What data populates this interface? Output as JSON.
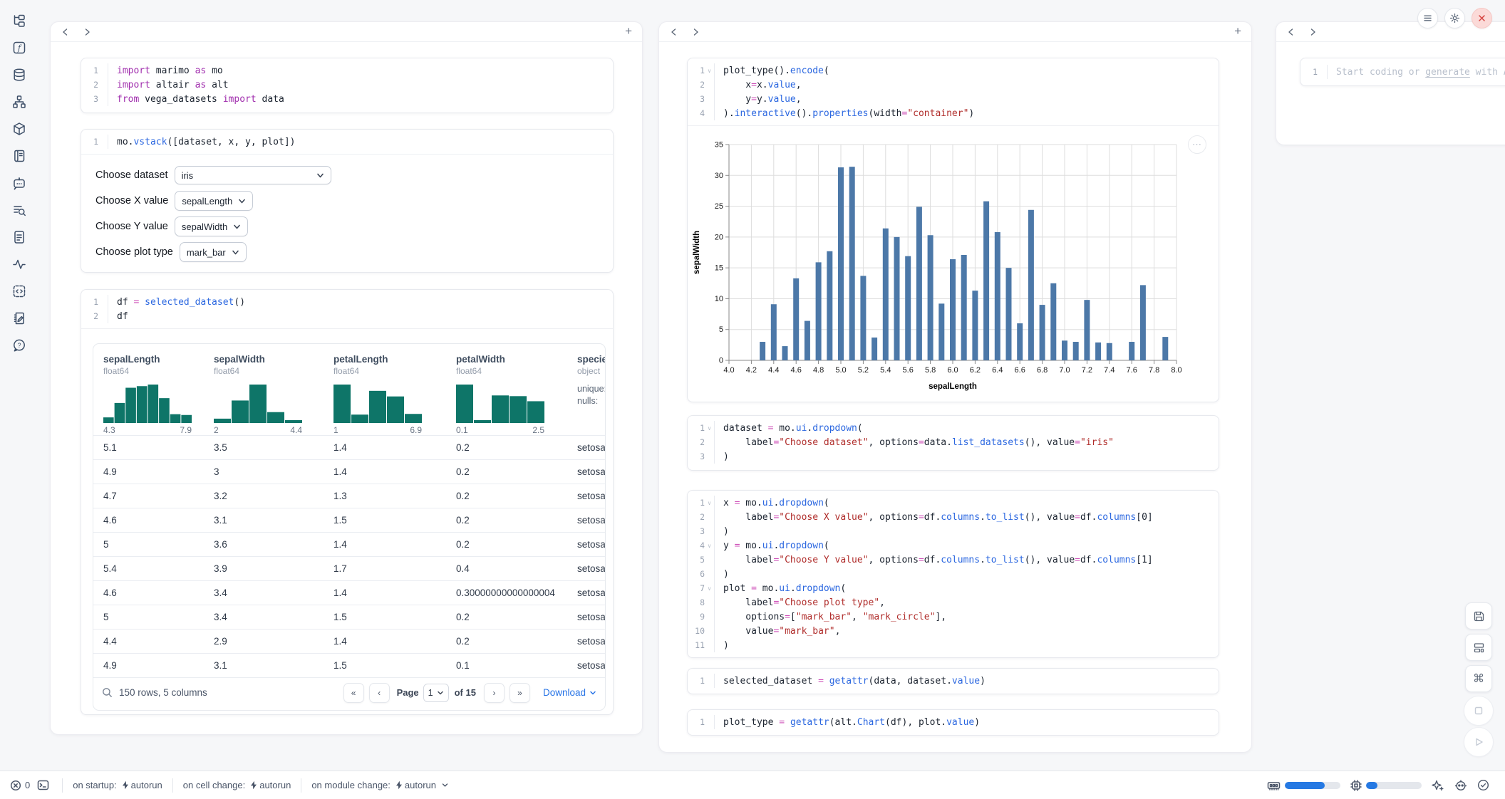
{
  "colors": {
    "accent_blue": "#2673e6",
    "bar_blue": "#4c78a8",
    "hist_teal": "#0e7568",
    "close_red": "#d64541",
    "progress_blue": "#2579e3"
  },
  "sidebar": {
    "icons": [
      "file-tree",
      "function-variables",
      "datasources",
      "dependency-graph",
      "packages",
      "logs",
      "ai-chat",
      "search-list",
      "documentation",
      "tracing",
      "snippets",
      "scratchpad",
      "help"
    ]
  },
  "cells": {
    "imports": {
      "lines": [
        [
          [
            "kw",
            "import"
          ],
          [
            "tx",
            " marimo "
          ],
          [
            "kw",
            "as"
          ],
          [
            "tx",
            " mo"
          ]
        ],
        [
          [
            "kw",
            "import"
          ],
          [
            "tx",
            " altair "
          ],
          [
            "kw",
            "as"
          ],
          [
            "tx",
            " alt"
          ]
        ],
        [
          [
            "kw",
            "from"
          ],
          [
            "tx",
            " vega_datasets "
          ],
          [
            "kw",
            "import"
          ],
          [
            "tx",
            " data"
          ]
        ]
      ],
      "folds": []
    },
    "vstack": {
      "lines": [
        [
          [
            "tx",
            "mo."
          ],
          [
            "fn",
            "vstack"
          ],
          [
            "tx",
            "([dataset, x, y, plot])"
          ]
        ]
      ],
      "folds": []
    },
    "df": {
      "lines": [
        [
          [
            "tx",
            "df "
          ],
          [
            "op",
            "="
          ],
          [
            "tx",
            " "
          ],
          [
            "fn",
            "selected_dataset"
          ],
          [
            "tx",
            "()"
          ]
        ],
        [
          [
            "tx",
            "df"
          ]
        ]
      ],
      "folds": []
    },
    "plot": {
      "lines": [
        [
          [
            "tx",
            "plot_type()."
          ],
          [
            "fn",
            "encode"
          ],
          [
            "tx",
            "("
          ]
        ],
        [
          [
            "tx",
            "    x"
          ],
          [
            "op",
            "="
          ],
          [
            "tx",
            "x."
          ],
          [
            "fn",
            "value"
          ],
          [
            "tx",
            ","
          ]
        ],
        [
          [
            "tx",
            "    y"
          ],
          [
            "op",
            "="
          ],
          [
            "tx",
            "y."
          ],
          [
            "fn",
            "value"
          ],
          [
            "tx",
            ","
          ]
        ],
        [
          [
            "tx",
            ")."
          ],
          [
            "fn",
            "interactive"
          ],
          [
            "tx",
            "()."
          ],
          [
            "fn",
            "properties"
          ],
          [
            "tx",
            "(width"
          ],
          [
            "op",
            "="
          ],
          [
            "st",
            "\"container\""
          ],
          [
            "tx",
            ")"
          ]
        ]
      ],
      "folds": [
        1
      ]
    },
    "dataset": {
      "lines": [
        [
          [
            "tx",
            "dataset "
          ],
          [
            "op",
            "="
          ],
          [
            "tx",
            " mo."
          ],
          [
            "fn",
            "ui"
          ],
          [
            "tx",
            "."
          ],
          [
            "fn",
            "dropdown"
          ],
          [
            "tx",
            "("
          ]
        ],
        [
          [
            "tx",
            "    label"
          ],
          [
            "op",
            "="
          ],
          [
            "st",
            "\"Choose dataset\""
          ],
          [
            "tx",
            ", options"
          ],
          [
            "op",
            "="
          ],
          [
            "tx",
            "data."
          ],
          [
            "fn",
            "list_datasets"
          ],
          [
            "tx",
            "(), value"
          ],
          [
            "op",
            "="
          ],
          [
            "st",
            "\"iris\""
          ]
        ],
        [
          [
            "tx",
            ")"
          ]
        ]
      ],
      "folds": [
        1
      ]
    },
    "xyplot": {
      "lines": [
        [
          [
            "tx",
            "x "
          ],
          [
            "op",
            "="
          ],
          [
            "tx",
            " mo."
          ],
          [
            "fn",
            "ui"
          ],
          [
            "tx",
            "."
          ],
          [
            "fn",
            "dropdown"
          ],
          [
            "tx",
            "("
          ]
        ],
        [
          [
            "tx",
            "    label"
          ],
          [
            "op",
            "="
          ],
          [
            "st",
            "\"Choose X value\""
          ],
          [
            "tx",
            ", options"
          ],
          [
            "op",
            "="
          ],
          [
            "tx",
            "df."
          ],
          [
            "fn",
            "columns"
          ],
          [
            "tx",
            "."
          ],
          [
            "fn",
            "to_list"
          ],
          [
            "tx",
            "(), value"
          ],
          [
            "op",
            "="
          ],
          [
            "tx",
            "df."
          ],
          [
            "fn",
            "columns"
          ],
          [
            "tx",
            "[0]"
          ]
        ],
        [
          [
            "tx",
            ")"
          ]
        ],
        [
          [
            "tx",
            "y "
          ],
          [
            "op",
            "="
          ],
          [
            "tx",
            " mo."
          ],
          [
            "fn",
            "ui"
          ],
          [
            "tx",
            "."
          ],
          [
            "fn",
            "dropdown"
          ],
          [
            "tx",
            "("
          ]
        ],
        [
          [
            "tx",
            "    label"
          ],
          [
            "op",
            "="
          ],
          [
            "st",
            "\"Choose Y value\""
          ],
          [
            "tx",
            ", options"
          ],
          [
            "op",
            "="
          ],
          [
            "tx",
            "df."
          ],
          [
            "fn",
            "columns"
          ],
          [
            "tx",
            "."
          ],
          [
            "fn",
            "to_list"
          ],
          [
            "tx",
            "(), value"
          ],
          [
            "op",
            "="
          ],
          [
            "tx",
            "df."
          ],
          [
            "fn",
            "columns"
          ],
          [
            "tx",
            "[1]"
          ]
        ],
        [
          [
            "tx",
            ")"
          ]
        ],
        [
          [
            "tx",
            "plot "
          ],
          [
            "op",
            "="
          ],
          [
            "tx",
            " mo."
          ],
          [
            "fn",
            "ui"
          ],
          [
            "tx",
            "."
          ],
          [
            "fn",
            "dropdown"
          ],
          [
            "tx",
            "("
          ]
        ],
        [
          [
            "tx",
            "    label"
          ],
          [
            "op",
            "="
          ],
          [
            "st",
            "\"Choose plot type\""
          ],
          [
            "tx",
            ","
          ]
        ],
        [
          [
            "tx",
            "    options"
          ],
          [
            "op",
            "="
          ],
          [
            "tx",
            "["
          ],
          [
            "st",
            "\"mark_bar\""
          ],
          [
            "tx",
            ", "
          ],
          [
            "st",
            "\"mark_circle\""
          ],
          [
            "tx",
            "],"
          ]
        ],
        [
          [
            "tx",
            "    value"
          ],
          [
            "op",
            "="
          ],
          [
            "st",
            "\"mark_bar\""
          ],
          [
            "tx",
            ","
          ]
        ],
        [
          [
            "tx",
            ")"
          ]
        ]
      ],
      "folds": [
        1,
        4,
        7
      ]
    },
    "selected": {
      "lines": [
        [
          [
            "tx",
            "selected_dataset "
          ],
          [
            "op",
            "="
          ],
          [
            "tx",
            " "
          ],
          [
            "fn",
            "getattr"
          ],
          [
            "tx",
            "(data, dataset."
          ],
          [
            "fn",
            "value"
          ],
          [
            "tx",
            ")"
          ]
        ]
      ],
      "folds": []
    },
    "plottype": {
      "lines": [
        [
          [
            "tx",
            "plot_type "
          ],
          [
            "op",
            "="
          ],
          [
            "tx",
            " "
          ],
          [
            "fn",
            "getattr"
          ],
          [
            "tx",
            "(alt."
          ],
          [
            "fn",
            "Chart"
          ],
          [
            "tx",
            "(df), plot."
          ],
          [
            "fn",
            "value"
          ],
          [
            "tx",
            ")"
          ]
        ]
      ],
      "folds": []
    },
    "scratch": {
      "line_no": "1"
    }
  },
  "controls": [
    {
      "label": "Choose dataset",
      "value": "iris",
      "wide": true
    },
    {
      "label": "Choose X value",
      "value": "sepalLength",
      "wide": false
    },
    {
      "label": "Choose Y value",
      "value": "sepalWidth",
      "wide": false
    },
    {
      "label": "Choose plot type",
      "value": "mark_bar",
      "wide": false
    }
  ],
  "table": {
    "columns": [
      {
        "name": "sepalLength",
        "dtype": "float64",
        "min": "4.3",
        "max": "7.9",
        "hist": [
          7,
          25,
          44,
          46,
          48,
          31,
          11,
          10
        ]
      },
      {
        "name": "sepalWidth",
        "dtype": "float64",
        "min": "2",
        "max": "4.4",
        "hist": [
          6,
          31,
          53,
          15,
          4
        ]
      },
      {
        "name": "petalLength",
        "dtype": "float64",
        "min": "1",
        "max": "6.9",
        "hist": [
          55,
          12,
          46,
          38,
          13
        ]
      },
      {
        "name": "petalWidth",
        "dtype": "float64",
        "min": "0.1",
        "max": "2.5",
        "hist": [
          53,
          4,
          38,
          37,
          30
        ]
      },
      {
        "name": "species",
        "dtype": "object",
        "meta": [
          "unique:",
          "nulls:"
        ]
      }
    ],
    "rows": [
      [
        "5.1",
        "3.5",
        "1.4",
        "0.2",
        "setosa"
      ],
      [
        "4.9",
        "3",
        "1.4",
        "0.2",
        "setosa"
      ],
      [
        "4.7",
        "3.2",
        "1.3",
        "0.2",
        "setosa"
      ],
      [
        "4.6",
        "3.1",
        "1.5",
        "0.2",
        "setosa"
      ],
      [
        "5",
        "3.6",
        "1.4",
        "0.2",
        "setosa"
      ],
      [
        "5.4",
        "3.9",
        "1.7",
        "0.4",
        "setosa"
      ],
      [
        "4.6",
        "3.4",
        "1.4",
        "0.30000000000000004",
        "setosa"
      ],
      [
        "5",
        "3.4",
        "1.5",
        "0.2",
        "setosa"
      ],
      [
        "4.4",
        "2.9",
        "1.4",
        "0.2",
        "setosa"
      ],
      [
        "4.9",
        "3.1",
        "1.5",
        "0.1",
        "setosa"
      ]
    ],
    "footer": {
      "summary": "150 rows, 5 columns",
      "first": "«",
      "prev": "‹",
      "page_label": "Page",
      "page": "1",
      "of": "of 15",
      "next": "›",
      "last": "»",
      "download": "Download"
    }
  },
  "chart_data": {
    "type": "bar",
    "title": "",
    "xlabel": "sepalLength",
    "ylabel": "sepalWidth",
    "xlim": [
      4.0,
      8.0
    ],
    "ylim": [
      0,
      35
    ],
    "x_tick_step": 0.2,
    "y_tick_step": 5,
    "grid": true,
    "bar_color": "#4c78a8",
    "points": [
      [
        4.3,
        3.0
      ],
      [
        4.4,
        9.1
      ],
      [
        4.5,
        2.3
      ],
      [
        4.6,
        13.3
      ],
      [
        4.7,
        6.4
      ],
      [
        4.8,
        15.9
      ],
      [
        4.9,
        17.7
      ],
      [
        5.0,
        31.3
      ],
      [
        5.1,
        31.4
      ],
      [
        5.2,
        13.7
      ],
      [
        5.3,
        3.7
      ],
      [
        5.4,
        21.4
      ],
      [
        5.5,
        20.0
      ],
      [
        5.6,
        16.9
      ],
      [
        5.7,
        24.9
      ],
      [
        5.8,
        20.3
      ],
      [
        5.9,
        9.2
      ],
      [
        6.0,
        16.4
      ],
      [
        6.1,
        17.1
      ],
      [
        6.2,
        11.3
      ],
      [
        6.3,
        25.8
      ],
      [
        6.4,
        20.8
      ],
      [
        6.5,
        15.0
      ],
      [
        6.6,
        6.0
      ],
      [
        6.7,
        24.4
      ],
      [
        6.8,
        9.0
      ],
      [
        6.9,
        12.5
      ],
      [
        7.0,
        3.2
      ],
      [
        7.1,
        3.0
      ],
      [
        7.2,
        9.8
      ],
      [
        7.3,
        2.9
      ],
      [
        7.4,
        2.8
      ],
      [
        7.6,
        3.0
      ],
      [
        7.7,
        12.2
      ],
      [
        7.9,
        3.8
      ]
    ]
  },
  "scratchpad": {
    "placeholder_pre": "Start coding or ",
    "placeholder_link": "generate",
    "placeholder_post": " with AI."
  },
  "statusbar": {
    "error_count": "0",
    "groups": [
      {
        "label": "on startup:",
        "value": "autorun"
      },
      {
        "label": "on cell change:",
        "value": "autorun"
      },
      {
        "label": "on module change:",
        "value": "autorun"
      }
    ],
    "ram_fill": 0.72,
    "cpu_fill": 0.2
  }
}
